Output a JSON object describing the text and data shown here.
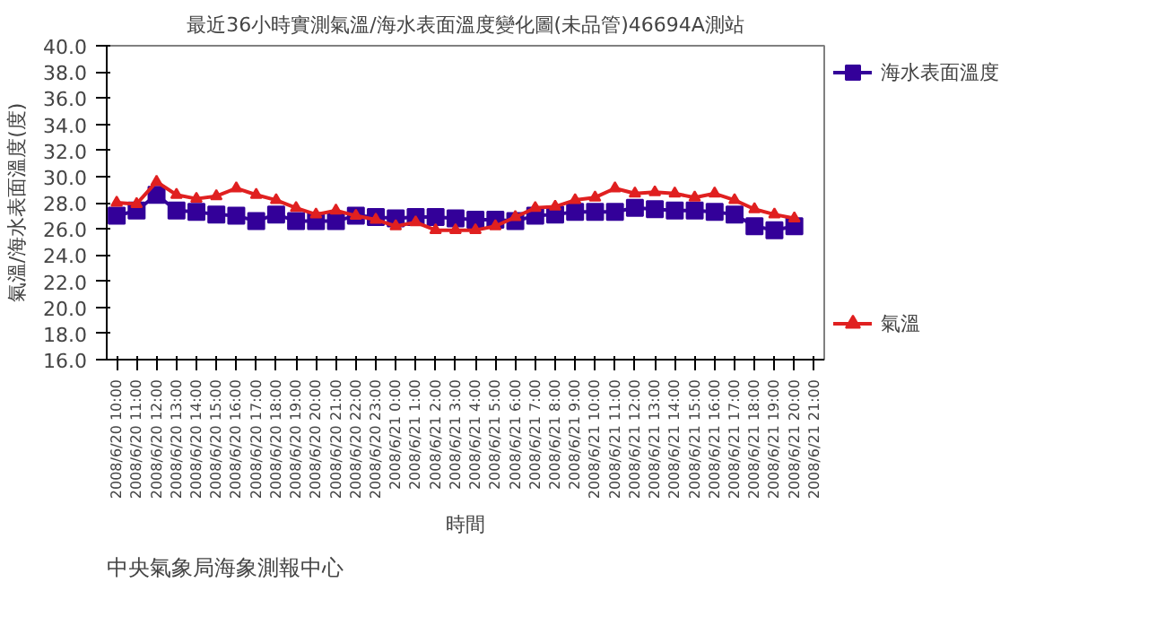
{
  "chart_data": {
    "type": "line",
    "title": "最近36小時實測氣溫/海水表面溫度變化圖(未品管)46694A測站",
    "xlabel": "時間",
    "ylabel": "氣溫/海水表面溫度(度)",
    "categories": [
      "2008/6/20 10:00",
      "2008/6/20 11:00",
      "2008/6/20 12:00",
      "2008/6/20 13:00",
      "2008/6/20 14:00",
      "2008/6/20 15:00",
      "2008/6/20 16:00",
      "2008/6/20 17:00",
      "2008/6/20 18:00",
      "2008/6/20 19:00",
      "2008/6/20 20:00",
      "2008/6/20 21:00",
      "2008/6/20 22:00",
      "2008/6/20 23:00",
      "2008/6/21 0:00",
      "2008/6/21 1:00",
      "2008/6/21 2:00",
      "2008/6/21 3:00",
      "2008/6/21 4:00",
      "2008/6/21 5:00",
      "2008/6/21 6:00",
      "2008/6/21 7:00",
      "2008/6/21 8:00",
      "2008/6/21 9:00",
      "2008/6/21 10:00",
      "2008/6/21 11:00",
      "2008/6/21 12:00",
      "2008/6/21 13:00",
      "2008/6/21 14:00",
      "2008/6/21 15:00",
      "2008/6/21 16:00",
      "2008/6/21 17:00",
      "2008/6/21 18:00",
      "2008/6/21 19:00",
      "2008/6/21 20:00",
      "2008/6/21 21:00"
    ],
    "series": [
      {
        "name": "海水表面溫度",
        "color": "#330099",
        "marker": "square",
        "values": [
          27.0,
          27.4,
          28.6,
          27.4,
          27.3,
          27.1,
          27.0,
          26.6,
          27.1,
          26.6,
          26.6,
          26.6,
          27.0,
          26.9,
          26.8,
          26.9,
          26.9,
          26.8,
          26.7,
          26.7,
          26.6,
          27.0,
          27.1,
          27.3,
          27.3,
          27.3,
          27.6,
          27.5,
          27.4,
          27.4,
          27.3,
          27.1,
          26.2,
          25.9,
          26.2,
          null
        ]
      },
      {
        "name": "氣溫",
        "color": "#e02020",
        "marker": "triangle",
        "values": [
          28.0,
          27.9,
          29.6,
          28.6,
          28.3,
          28.5,
          29.1,
          28.6,
          28.2,
          27.6,
          27.1,
          27.4,
          27.0,
          26.7,
          26.2,
          26.5,
          25.9,
          25.9,
          25.9,
          26.2,
          26.9,
          27.6,
          27.7,
          28.2,
          28.4,
          29.1,
          28.7,
          28.8,
          28.7,
          28.4,
          28.7,
          28.2,
          27.5,
          27.1,
          26.8,
          null
        ]
      }
    ],
    "ylim": [
      16,
      40
    ],
    "yticks": [
      {
        "value": 16,
        "label": "16.0"
      },
      {
        "value": 18,
        "label": "18.0"
      },
      {
        "value": 20,
        "label": "20.0"
      },
      {
        "value": 22,
        "label": "22.0"
      },
      {
        "value": 24,
        "label": "24.0"
      },
      {
        "value": 26,
        "label": "26.0"
      },
      {
        "value": 28,
        "label": "28.0"
      },
      {
        "value": 30,
        "label": "30.0"
      },
      {
        "value": 32,
        "label": "32.0"
      },
      {
        "value": 34,
        "label": "34.0"
      },
      {
        "value": 36,
        "label": "36.0"
      },
      {
        "value": 38,
        "label": "38.0"
      },
      {
        "value": 40,
        "label": "40.0"
      }
    ],
    "grid": false,
    "legend": "right",
    "line_style": "solid",
    "annotations": [
      "中央氣象局海象測報中心"
    ]
  }
}
